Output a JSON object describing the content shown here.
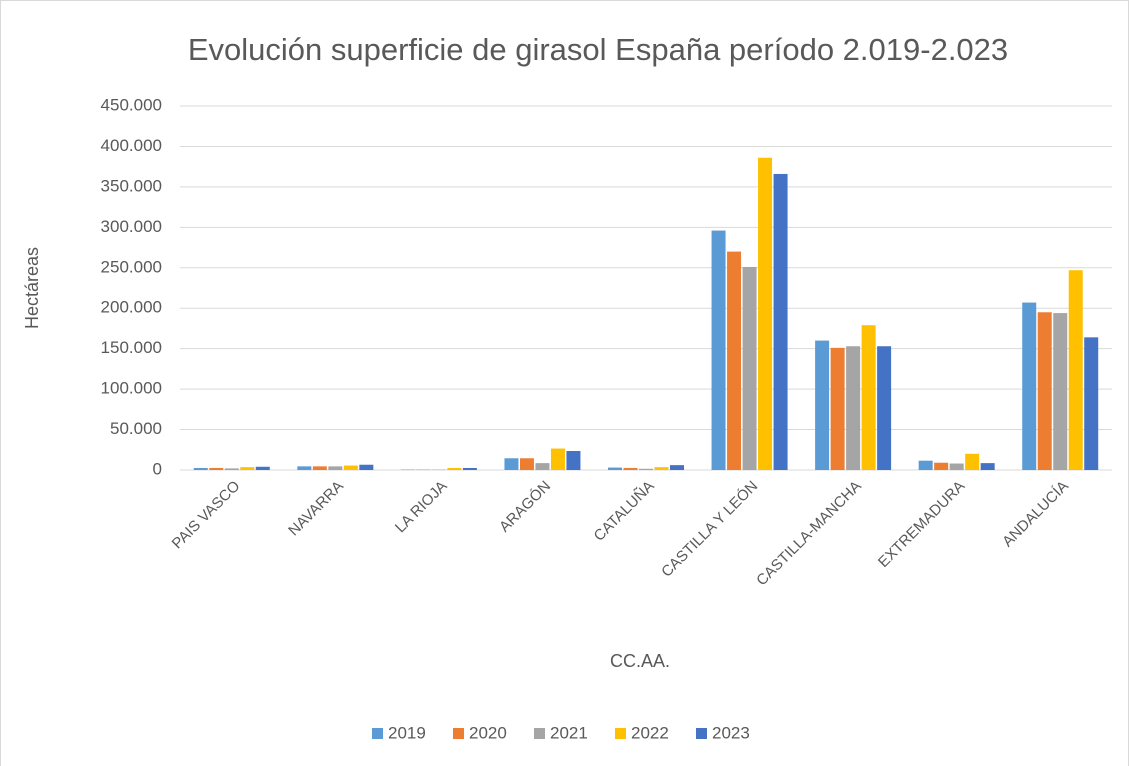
{
  "chart_data": {
    "type": "bar",
    "title": "Evolución superficie de girasol España período 2.019-2.023",
    "x_label": "CC.AA.",
    "y_label": "Hectáreas",
    "categories": [
      "PAIS VASCO",
      "NAVARRA",
      "LA RIOJA",
      "ARAGÓN",
      "CATALUÑA",
      "CASTILLA Y LEÓN",
      "CASTILLA-MANCHA",
      "EXTREMADURA",
      "ANDALUCÍA"
    ],
    "series": [
      {
        "name": "2019",
        "color": "#5b9bd5",
        "values": [
          2500,
          4500,
          500,
          14500,
          3000,
          296000,
          160000,
          11500,
          207000
        ]
      },
      {
        "name": "2020",
        "color": "#ed7d31",
        "values": [
          2500,
          4500,
          500,
          14500,
          2500,
          270000,
          151000,
          9000,
          195000
        ]
      },
      {
        "name": "2021",
        "color": "#a5a5a5",
        "values": [
          2000,
          4500,
          500,
          8500,
          1500,
          251000,
          153000,
          8000,
          194000
        ]
      },
      {
        "name": "2022",
        "color": "#ffc000",
        "values": [
          3500,
          5500,
          2500,
          26500,
          3500,
          386000,
          179000,
          20000,
          247000
        ]
      },
      {
        "name": "2023",
        "color": "#4472c4",
        "values": [
          4000,
          6500,
          2500,
          23500,
          6000,
          366000,
          153000,
          8500,
          164000
        ]
      }
    ],
    "ylim": [
      0,
      450000
    ],
    "yticks": [
      0,
      {
        "value": 50000,
        "label": "50.000"
      },
      {
        "value": 100000,
        "label": "100.000"
      },
      {
        "value": 150000,
        "label": "150.000"
      },
      {
        "value": 200000,
        "label": "200.000"
      },
      {
        "value": 250000,
        "label": "250.000"
      },
      {
        "value": 300000,
        "label": "300.000"
      },
      {
        "value": 350000,
        "label": "350.000"
      },
      {
        "value": 400000,
        "label": "400.000"
      },
      {
        "value": 450000,
        "label": "450.000"
      }
    ],
    "grid": true,
    "legend": "bottom"
  }
}
